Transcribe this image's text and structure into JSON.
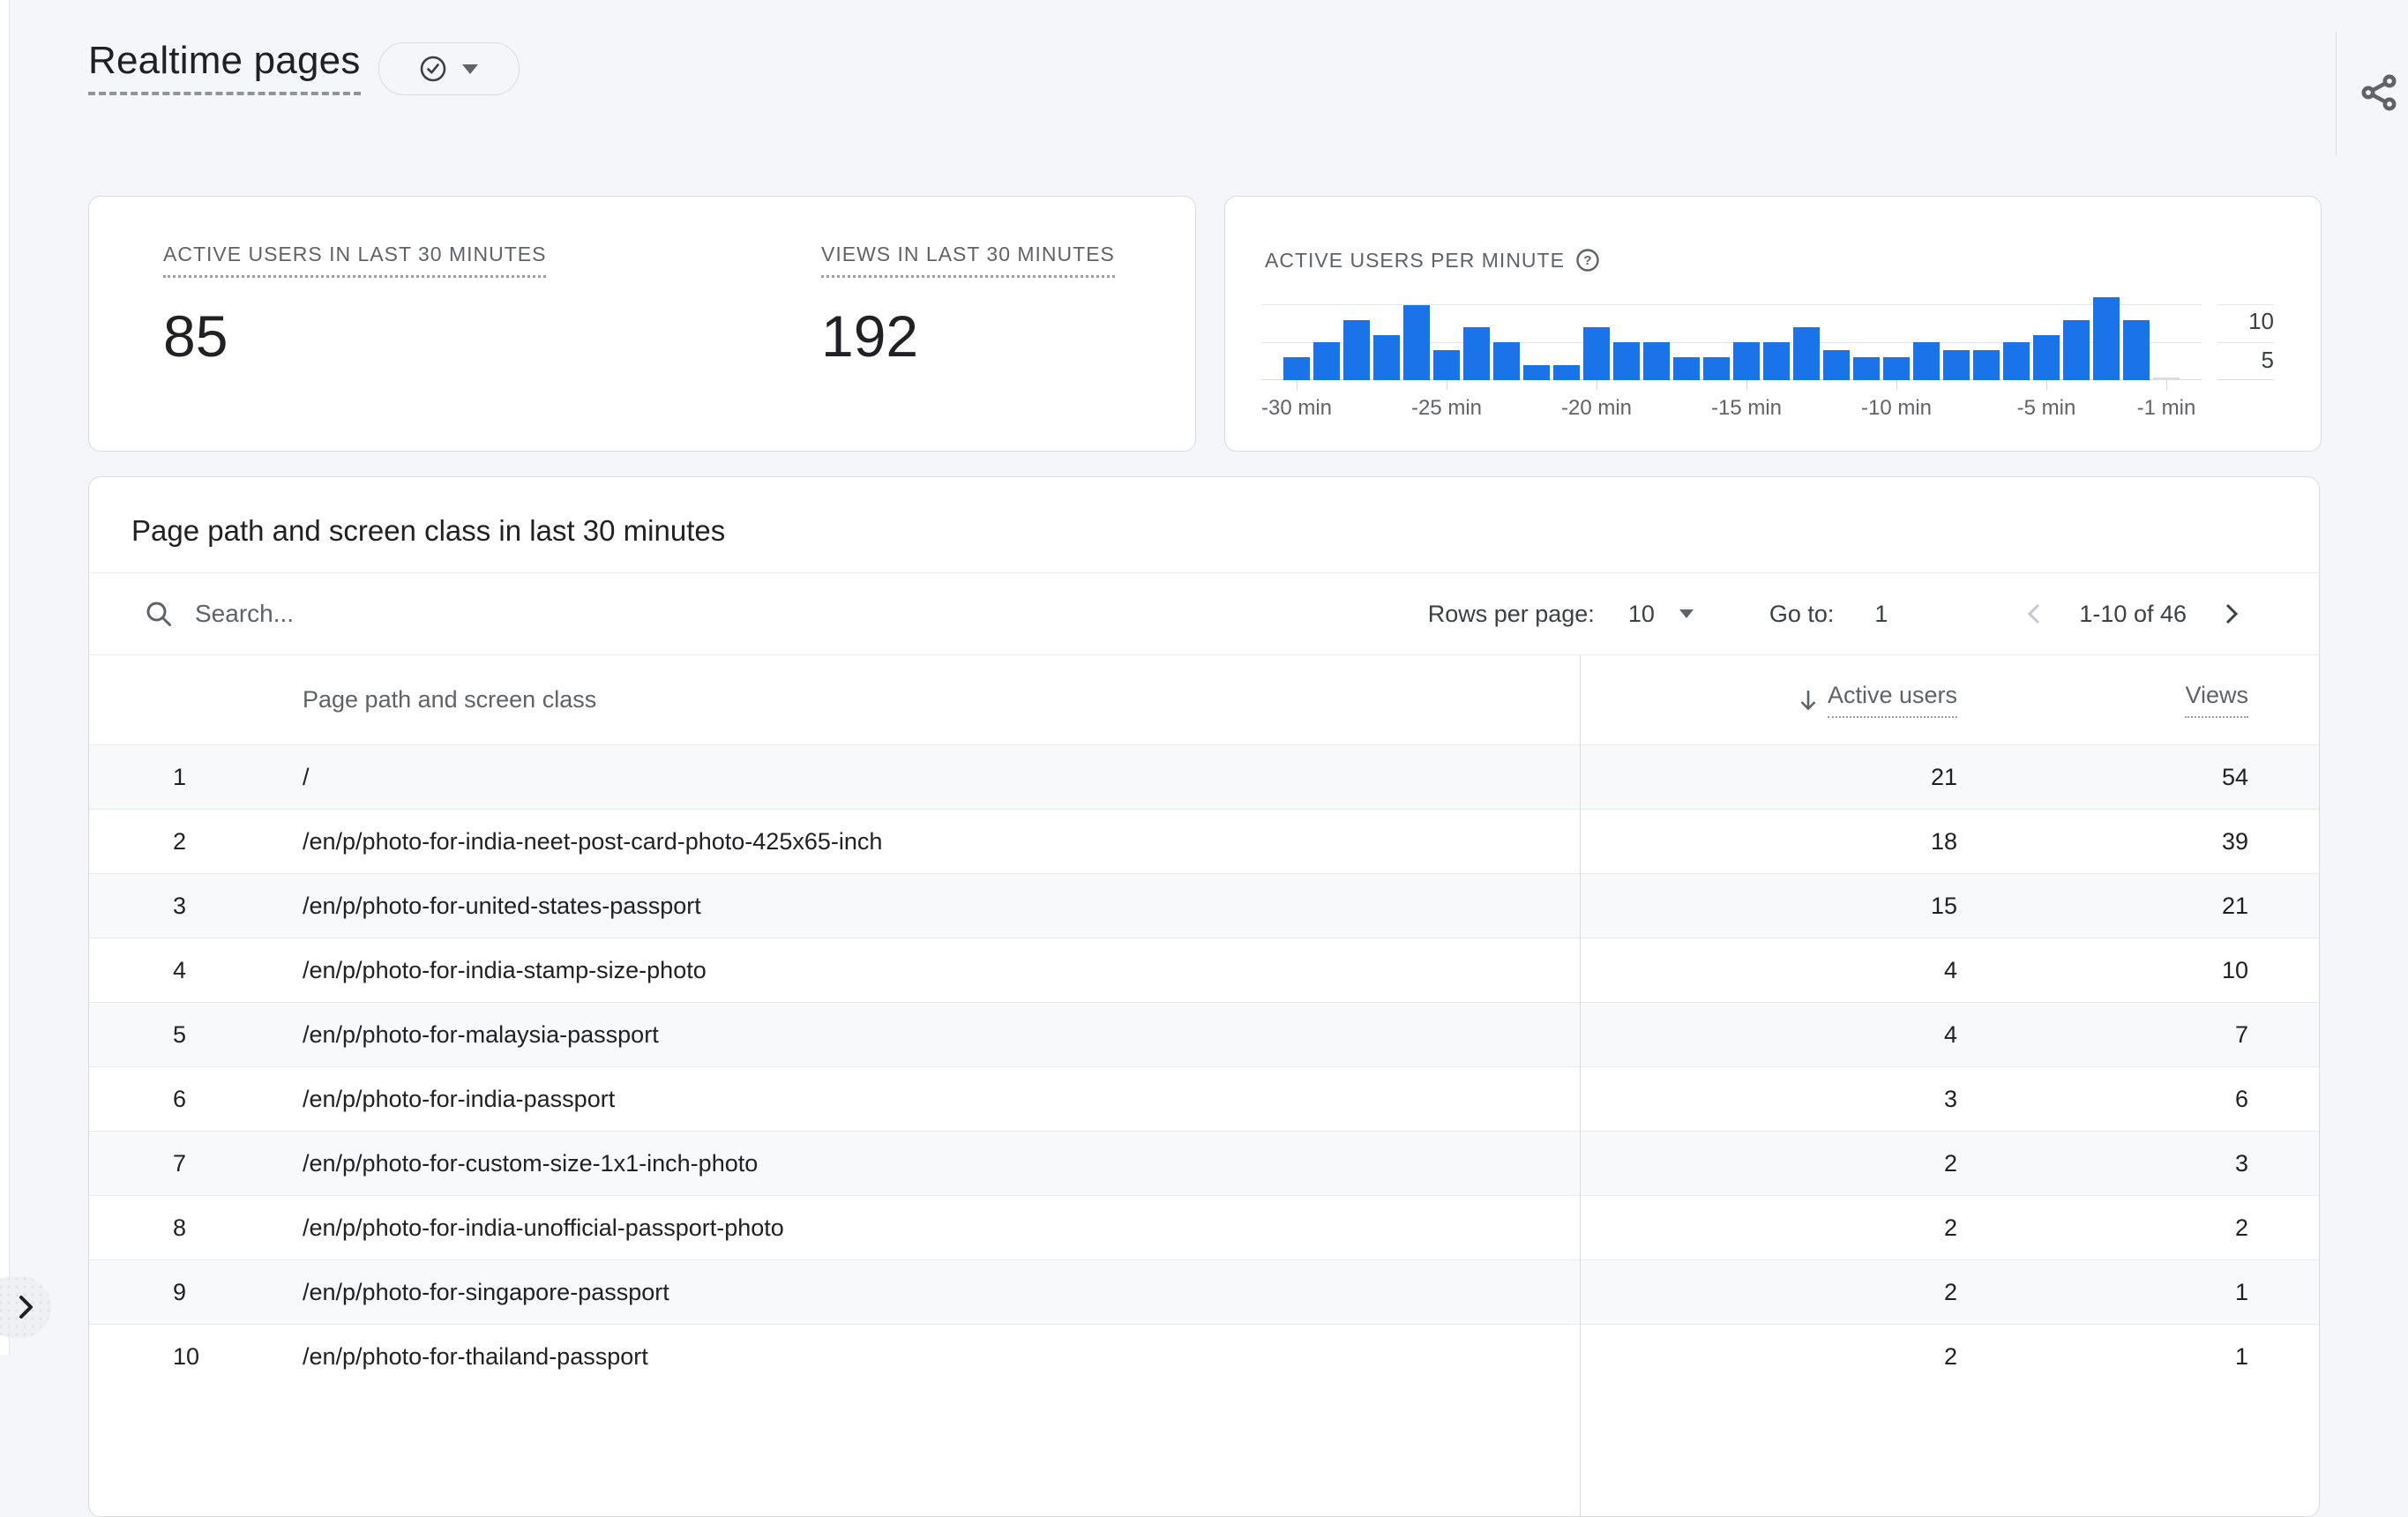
{
  "header": {
    "title": "Realtime pages"
  },
  "icons": {
    "title_badge": "check-circle",
    "title_badge_caret": "caret-down",
    "share": "share",
    "help": "help-circle",
    "search": "search",
    "rows_per_page_caret": "caret-down",
    "sort_descending": "arrow-down",
    "prev_page": "chevron-left",
    "next_page": "chevron-right",
    "expand_nav": "chevron-right"
  },
  "colors": {
    "accent_blue": "#1a73e8",
    "current_minute_bar": "#dadce0",
    "page_bg": "#f4f6f9",
    "card_border": "#dadce0",
    "text_primary": "#202124",
    "text_secondary": "#5f6368",
    "row_alt_bg": "#f8f9fa"
  },
  "metrics_card": {
    "metrics": [
      {
        "label": "ACTIVE USERS IN LAST 30 MINUTES",
        "value": "85"
      },
      {
        "label": "VIEWS IN LAST 30 MINUTES",
        "value": "192"
      }
    ]
  },
  "chart_card": {
    "title": "ACTIVE USERS PER MINUTE"
  },
  "chart_data": {
    "type": "bar",
    "title": "ACTIVE USERS PER MINUTE",
    "x_minutes": [
      -30,
      -29,
      -28,
      -27,
      -26,
      -25,
      -24,
      -23,
      -22,
      -21,
      -20,
      -19,
      -18,
      -17,
      -16,
      -15,
      -14,
      -13,
      -12,
      -11,
      -10,
      -9,
      -8,
      -7,
      -6,
      -5,
      -4,
      -3,
      -2,
      -1
    ],
    "values": [
      3,
      5,
      8,
      6,
      10,
      4,
      7,
      5,
      2,
      2,
      7,
      5,
      5,
      3,
      3,
      5,
      5,
      7,
      4,
      3,
      3,
      5,
      4,
      4,
      5,
      6,
      8,
      11,
      8,
      0
    ],
    "current_minute_partial": true,
    "bar_color": "#1a73e8",
    "current_minute_bar_color": "#dadce0",
    "ylim": [
      0,
      11.5
    ],
    "yticks": [
      5,
      10
    ],
    "ytick_labels_top_to_bottom": [
      "10",
      "5"
    ],
    "grid": "horizontal",
    "xtick_minutes": [
      -30,
      -25,
      -20,
      -15,
      -10,
      -5,
      -1
    ],
    "xtick_labels": [
      "-30 min",
      "-25 min",
      "-20 min",
      "-15 min",
      "-10 min",
      "-5 min",
      "-1 min"
    ],
    "legend": "none"
  },
  "table_card": {
    "title": "Page path and screen class in last 30 minutes",
    "search_placeholder": "Search...",
    "rows_per_page_label": "Rows per page:",
    "rows_per_page_value": "10",
    "goto_label": "Go to:",
    "goto_value": "1",
    "range_text": "1-10 of 46",
    "columns": {
      "dimension": "Page path and screen class",
      "metric1": "Active users",
      "metric2": "Views"
    },
    "sort": {
      "column": "Active users",
      "direction": "desc"
    },
    "rows": [
      {
        "rank": "1",
        "path": "/",
        "active_users": "21",
        "views": "54"
      },
      {
        "rank": "2",
        "path": "/en/p/photo-for-india-neet-post-card-photo-425x65-inch",
        "active_users": "18",
        "views": "39"
      },
      {
        "rank": "3",
        "path": "/en/p/photo-for-united-states-passport",
        "active_users": "15",
        "views": "21"
      },
      {
        "rank": "4",
        "path": "/en/p/photo-for-india-stamp-size-photo",
        "active_users": "4",
        "views": "10"
      },
      {
        "rank": "5",
        "path": "/en/p/photo-for-malaysia-passport",
        "active_users": "4",
        "views": "7"
      },
      {
        "rank": "6",
        "path": "/en/p/photo-for-india-passport",
        "active_users": "3",
        "views": "6"
      },
      {
        "rank": "7",
        "path": "/en/p/photo-for-custom-size-1x1-inch-photo",
        "active_users": "2",
        "views": "3"
      },
      {
        "rank": "8",
        "path": "/en/p/photo-for-india-unofficial-passport-photo",
        "active_users": "2",
        "views": "2"
      },
      {
        "rank": "9",
        "path": "/en/p/photo-for-singapore-passport",
        "active_users": "2",
        "views": "1"
      },
      {
        "rank": "10",
        "path": "/en/p/photo-for-thailand-passport",
        "active_users": "2",
        "views": "1"
      }
    ]
  }
}
